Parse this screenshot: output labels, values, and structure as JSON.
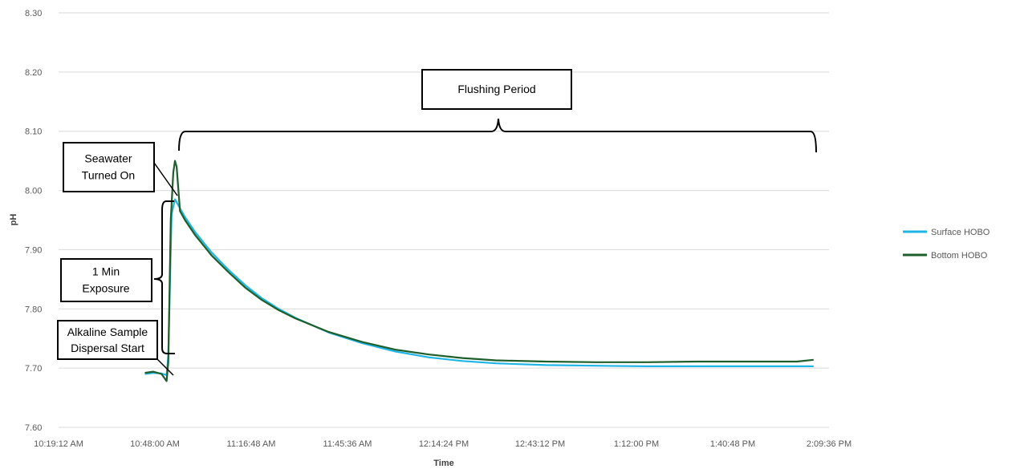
{
  "chart_data": {
    "type": "line",
    "title": "",
    "xlabel": "Time",
    "ylabel": "pH",
    "ylim": [
      7.6,
      8.3
    ],
    "y_ticks": [
      "7.60",
      "7.70",
      "7.80",
      "7.90",
      "8.00",
      "8.10",
      "8.20",
      "8.30"
    ],
    "x_ticks": [
      "10:19:12 AM",
      "10:48:00 AM",
      "11:16:48 AM",
      "11:45:36 AM",
      "12:14:24 PM",
      "12:43:12 PM",
      "1:12:00 PM",
      "1:40:48 PM",
      "2:09:36 PM"
    ],
    "xlim": [
      "10:19:12",
      "14:09:36"
    ],
    "grid": true,
    "legend_position": "right",
    "series": [
      {
        "name": "Surface HOBO",
        "color": "#1fb5e6",
        "points": [
          [
            "10:45:00",
            7.69
          ],
          [
            "10:47:30",
            7.692
          ],
          [
            "10:50:00",
            7.691
          ],
          [
            "10:51:30",
            7.688
          ],
          [
            "10:52:00",
            7.72
          ],
          [
            "10:53:00",
            7.96
          ],
          [
            "10:54:00",
            7.985
          ],
          [
            "10:55:00",
            7.975
          ],
          [
            "10:57:00",
            7.955
          ],
          [
            "11:00:00",
            7.93
          ],
          [
            "11:05:00",
            7.895
          ],
          [
            "11:10:00",
            7.866
          ],
          [
            "11:15:00",
            7.84
          ],
          [
            "11:20:00",
            7.818
          ],
          [
            "11:25:00",
            7.8
          ],
          [
            "11:30:00",
            7.785
          ],
          [
            "11:40:00",
            7.76
          ],
          [
            "11:50:00",
            7.742
          ],
          [
            "12:00:00",
            7.728
          ],
          [
            "12:10:00",
            7.718
          ],
          [
            "12:20:00",
            7.712
          ],
          [
            "12:30:00",
            7.708
          ],
          [
            "12:45:00",
            7.705
          ],
          [
            "13:00:00",
            7.704
          ],
          [
            "13:15:00",
            7.703
          ],
          [
            "13:30:00",
            7.703
          ],
          [
            "13:45:00",
            7.703
          ],
          [
            "14:00:00",
            7.703
          ],
          [
            "14:05:00",
            7.703
          ]
        ]
      },
      {
        "name": "Bottom HOBO",
        "color": "#1e5e2a",
        "points": [
          [
            "10:45:00",
            7.692
          ],
          [
            "10:47:30",
            7.694
          ],
          [
            "10:50:00",
            7.69
          ],
          [
            "10:51:30",
            7.678
          ],
          [
            "10:52:00",
            7.71
          ],
          [
            "10:52:45",
            7.95
          ],
          [
            "10:53:30",
            8.03
          ],
          [
            "10:54:00",
            8.05
          ],
          [
            "10:54:30",
            8.04
          ],
          [
            "10:55:30",
            7.965
          ],
          [
            "10:57:00",
            7.95
          ],
          [
            "11:00:00",
            7.925
          ],
          [
            "11:05:00",
            7.89
          ],
          [
            "11:10:00",
            7.862
          ],
          [
            "11:15:00",
            7.836
          ],
          [
            "11:20:00",
            7.815
          ],
          [
            "11:25:00",
            7.798
          ],
          [
            "11:30:00",
            7.784
          ],
          [
            "11:40:00",
            7.761
          ],
          [
            "11:50:00",
            7.744
          ],
          [
            "12:00:00",
            7.731
          ],
          [
            "12:10:00",
            7.723
          ],
          [
            "12:20:00",
            7.717
          ],
          [
            "12:30:00",
            7.713
          ],
          [
            "12:45:00",
            7.711
          ],
          [
            "13:00:00",
            7.71
          ],
          [
            "13:15:00",
            7.71
          ],
          [
            "13:30:00",
            7.711
          ],
          [
            "13:45:00",
            7.711
          ],
          [
            "14:00:00",
            7.711
          ],
          [
            "14:05:00",
            7.714
          ]
        ]
      }
    ],
    "annotations": [
      {
        "id": "flushing",
        "lines": [
          "Flushing Period"
        ]
      },
      {
        "id": "seawater",
        "lines": [
          "Seawater",
          "Turned On"
        ]
      },
      {
        "id": "exposure",
        "lines": [
          "1 Min",
          "Exposure"
        ]
      },
      {
        "id": "alkaline",
        "lines": [
          "Alkaline Sample",
          "Dispersal Start"
        ]
      }
    ]
  }
}
